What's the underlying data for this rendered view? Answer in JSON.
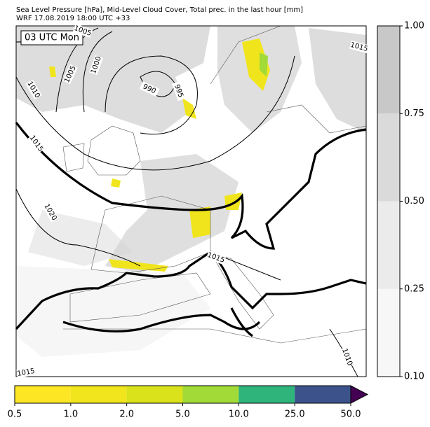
{
  "title": "Sea Level Pressure [hPa], Mid-Level Cloud Cover, Total prec. in the last hour [mm]",
  "subtitle": "WRF 17.08.2019 18:00 UTC +33",
  "time_label": "03 UTC Mon",
  "isobar_labels": [
    1005,
    1005,
    1000,
    990,
    995,
    1010,
    1015,
    1020,
    1015,
    1010,
    1015,
    1015
  ],
  "cloud_colorbar": {
    "ticks": [
      {
        "value": 0.1,
        "label": "0.10"
      },
      {
        "value": 0.25,
        "label": "0.25"
      },
      {
        "value": 0.5,
        "label": "0.50"
      },
      {
        "value": 0.75,
        "label": "0.75"
      },
      {
        "value": 1.0,
        "label": "1.00"
      }
    ],
    "colors": [
      "#f7f7f7",
      "#ebebeb",
      "#dadada",
      "#c8c8c8"
    ]
  },
  "precip_colorbar": {
    "ticks": [
      0.5,
      {
        "value": 1,
        "label": "1.0"
      },
      {
        "value": 2,
        "label": "2.0"
      },
      {
        "value": 5,
        "label": "5.0"
      },
      {
        "value": 10,
        "label": "10.0"
      },
      {
        "value": 25,
        "label": "25.0"
      },
      {
        "value": 50,
        "label": "50.0"
      }
    ],
    "colors": [
      "#fde725",
      "#f1e51d",
      "#d9e21a",
      "#a2da37",
      "#2fb47c",
      "#3b528b"
    ],
    "extend_color": "#440154"
  }
}
